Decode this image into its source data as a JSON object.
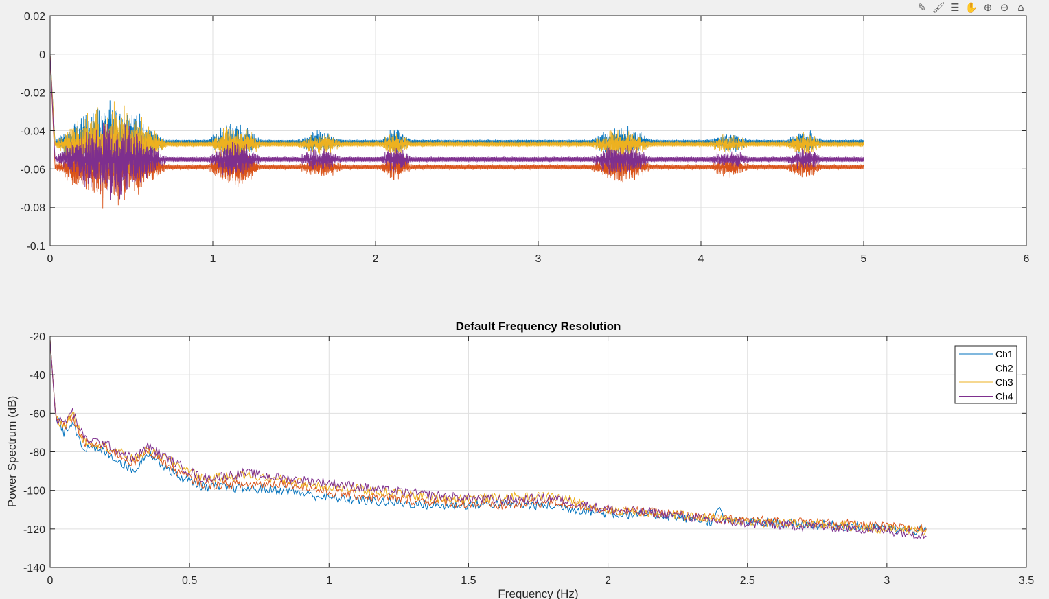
{
  "toolbar": {
    "buttons": [
      {
        "name": "edit-plot-icon",
        "glyph": "✎"
      },
      {
        "name": "brush-icon",
        "glyph": "🖌"
      },
      {
        "name": "data-tips-icon",
        "glyph": "☰"
      },
      {
        "name": "pan-hand-icon",
        "glyph": "✋"
      },
      {
        "name": "zoom-in-icon",
        "glyph": "⊕"
      },
      {
        "name": "zoom-out-icon",
        "glyph": "⊖"
      },
      {
        "name": "home-icon",
        "glyph": "⌂"
      }
    ]
  },
  "colors": {
    "Ch1": "#0072BD",
    "Ch2": "#D95319",
    "Ch3": "#EDB120",
    "Ch4": "#7E2F8E",
    "grid": "#dfdfdf",
    "axes_bg": "#ffffff",
    "figure_bg": "#f0f0f0"
  },
  "chart_data": [
    {
      "type": "line",
      "title": "",
      "xlabel": "",
      "ylabel": "",
      "xlim": [
        0,
        6
      ],
      "ylim": [
        -0.1,
        0.02
      ],
      "xticks": [
        0,
        1,
        2,
        3,
        4,
        5,
        6
      ],
      "yticks": [
        -0.1,
        -0.08,
        -0.06,
        -0.04,
        -0.02,
        0,
        0.02
      ],
      "xtick_labels": [
        "0",
        "1",
        "2",
        "3",
        "4",
        "5",
        "6"
      ],
      "ytick_labels": [
        "-0.1",
        "-0.08",
        "-0.06",
        "-0.04",
        "-0.02",
        "0",
        "0.02"
      ],
      "grid": true,
      "x_extent": [
        0,
        5
      ],
      "series": [
        {
          "id": "Ch1",
          "baseline": -0.046
        },
        {
          "id": "Ch2",
          "baseline": -0.059
        },
        {
          "id": "Ch3",
          "baseline": -0.047
        },
        {
          "id": "Ch4",
          "baseline": -0.055
        }
      ],
      "bursts": [
        {
          "start": 0.03,
          "end": 0.72,
          "amp": 0.022
        },
        {
          "start": 0.97,
          "end": 1.3,
          "amp": 0.011
        },
        {
          "start": 1.52,
          "end": 1.8,
          "amp": 0.006
        },
        {
          "start": 2.03,
          "end": 2.22,
          "amp": 0.008
        },
        {
          "start": 3.32,
          "end": 3.7,
          "amp": 0.009
        },
        {
          "start": 4.05,
          "end": 4.3,
          "amp": 0.005
        },
        {
          "start": 4.52,
          "end": 4.75,
          "amp": 0.006
        }
      ]
    },
    {
      "type": "line",
      "title": "Default Frequency Resolution",
      "xlabel": "Frequency (Hz)",
      "ylabel": "Power Spectrum (dB)",
      "xlim": [
        0,
        3.5
      ],
      "ylim": [
        -140,
        -20
      ],
      "xticks": [
        0,
        0.5,
        1,
        1.5,
        2,
        2.5,
        3,
        3.5
      ],
      "yticks": [
        -140,
        -120,
        -100,
        -80,
        -60,
        -40,
        -20
      ],
      "xtick_labels": [
        "0",
        "0.5",
        "1",
        "1.5",
        "2",
        "2.5",
        "3",
        "3.5"
      ],
      "ytick_labels": [
        "-140",
        "-120",
        "-100",
        "-80",
        "-60",
        "-40",
        "-20"
      ],
      "grid": true,
      "legend_position": "top-right",
      "legend": [
        "Ch1",
        "Ch2",
        "Ch3",
        "Ch4"
      ],
      "x_extent": [
        0,
        3.1416
      ],
      "series": [
        {
          "id": "Ch1",
          "name": "Ch1",
          "points": [
            [
              0,
              -22
            ],
            [
              0.02,
              -62
            ],
            [
              0.05,
              -70
            ],
            [
              0.08,
              -64
            ],
            [
              0.12,
              -78
            ],
            [
              0.2,
              -80
            ],
            [
              0.3,
              -90
            ],
            [
              0.35,
              -80
            ],
            [
              0.45,
              -92
            ],
            [
              0.55,
              -98
            ],
            [
              0.7,
              -99
            ],
            [
              0.85,
              -100
            ],
            [
              1.0,
              -104
            ],
            [
              1.2,
              -106
            ],
            [
              1.4,
              -108
            ],
            [
              1.6,
              -107
            ],
            [
              1.8,
              -108
            ],
            [
              2.0,
              -112
            ],
            [
              2.2,
              -113
            ],
            [
              2.38,
              -116
            ],
            [
              2.4,
              -109
            ],
            [
              2.42,
              -116
            ],
            [
              2.6,
              -117
            ],
            [
              2.8,
              -118
            ],
            [
              3.0,
              -120
            ],
            [
              3.14,
              -121
            ]
          ]
        },
        {
          "id": "Ch2",
          "name": "Ch2",
          "points": [
            [
              0,
              -22
            ],
            [
              0.02,
              -62
            ],
            [
              0.05,
              -67
            ],
            [
              0.08,
              -62
            ],
            [
              0.12,
              -75
            ],
            [
              0.2,
              -78
            ],
            [
              0.3,
              -86
            ],
            [
              0.35,
              -79
            ],
            [
              0.45,
              -90
            ],
            [
              0.55,
              -97
            ],
            [
              0.7,
              -97
            ],
            [
              0.85,
              -96
            ],
            [
              1.0,
              -101
            ],
            [
              1.2,
              -104
            ],
            [
              1.4,
              -106
            ],
            [
              1.6,
              -108
            ],
            [
              1.8,
              -106
            ],
            [
              2.0,
              -110
            ],
            [
              2.2,
              -112
            ],
            [
              2.4,
              -115
            ],
            [
              2.6,
              -116
            ],
            [
              2.8,
              -117
            ],
            [
              3.0,
              -119
            ],
            [
              3.14,
              -120
            ]
          ]
        },
        {
          "id": "Ch3",
          "name": "Ch3",
          "points": [
            [
              0,
              -22
            ],
            [
              0.02,
              -63
            ],
            [
              0.05,
              -66
            ],
            [
              0.08,
              -60
            ],
            [
              0.12,
              -74
            ],
            [
              0.2,
              -77
            ],
            [
              0.3,
              -84
            ],
            [
              0.35,
              -79
            ],
            [
              0.45,
              -86
            ],
            [
              0.55,
              -94
            ],
            [
              0.7,
              -92
            ],
            [
              0.85,
              -95
            ],
            [
              1.0,
              -98
            ],
            [
              1.2,
              -101
            ],
            [
              1.4,
              -104
            ],
            [
              1.6,
              -104
            ],
            [
              1.8,
              -103
            ],
            [
              2.0,
              -110
            ],
            [
              2.2,
              -112
            ],
            [
              2.4,
              -115
            ],
            [
              2.6,
              -117
            ],
            [
              2.8,
              -118
            ],
            [
              3.0,
              -120
            ],
            [
              3.14,
              -121
            ]
          ]
        },
        {
          "id": "Ch4",
          "name": "Ch4",
          "points": [
            [
              0,
              -22
            ],
            [
              0.02,
              -63
            ],
            [
              0.05,
              -65
            ],
            [
              0.08,
              -59
            ],
            [
              0.12,
              -73
            ],
            [
              0.2,
              -76
            ],
            [
              0.3,
              -84
            ],
            [
              0.35,
              -77
            ],
            [
              0.45,
              -86
            ],
            [
              0.55,
              -94
            ],
            [
              0.7,
              -91
            ],
            [
              0.85,
              -94
            ],
            [
              1.0,
              -96
            ],
            [
              1.2,
              -100
            ],
            [
              1.4,
              -103
            ],
            [
              1.6,
              -105
            ],
            [
              1.8,
              -104
            ],
            [
              2.0,
              -110
            ],
            [
              2.2,
              -112
            ],
            [
              2.4,
              -116
            ],
            [
              2.6,
              -118
            ],
            [
              2.8,
              -119
            ],
            [
              3.0,
              -121
            ],
            [
              3.14,
              -123
            ]
          ]
        }
      ]
    }
  ]
}
